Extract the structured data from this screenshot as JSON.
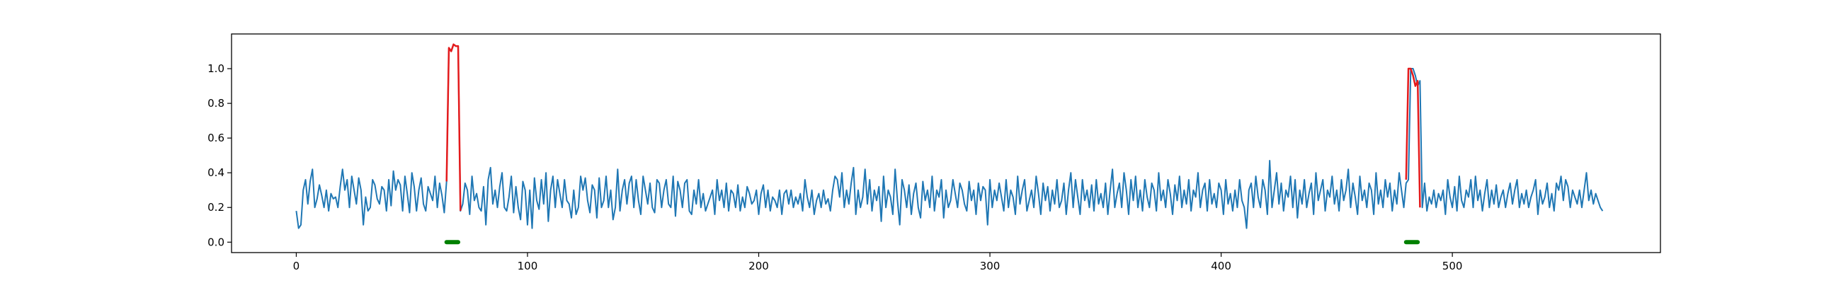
{
  "chart_data": {
    "type": "line",
    "title": "",
    "xlabel": "",
    "ylabel": "",
    "xlim": [
      -28,
      590
    ],
    "ylim": [
      -0.06,
      1.2
    ],
    "grid": false,
    "legend": "none",
    "x_ticks": [
      0,
      100,
      200,
      300,
      400,
      500
    ],
    "x_tick_labels": [
      "0",
      "100",
      "200",
      "300",
      "400",
      "500"
    ],
    "y_ticks": [
      0.0,
      0.2,
      0.4,
      0.6,
      0.8,
      1.0
    ],
    "y_tick_labels": [
      "0.0",
      "0.2",
      "0.4",
      "0.6",
      "0.8",
      "1.0"
    ],
    "colors": {
      "signal": "#1f77b4",
      "anomaly": "#e41a1c",
      "marker": "#008000"
    },
    "series": [
      {
        "key": "signal",
        "x_start": 0,
        "values": [
          0.18,
          0.08,
          0.1,
          0.3,
          0.36,
          0.22,
          0.35,
          0.42,
          0.2,
          0.25,
          0.33,
          0.27,
          0.2,
          0.3,
          0.18,
          0.28,
          0.25,
          0.26,
          0.2,
          0.32,
          0.42,
          0.3,
          0.36,
          0.2,
          0.38,
          0.3,
          0.22,
          0.37,
          0.3,
          0.1,
          0.26,
          0.18,
          0.2,
          0.36,
          0.33,
          0.25,
          0.22,
          0.32,
          0.3,
          0.18,
          0.36,
          0.21,
          0.41,
          0.3,
          0.36,
          0.33,
          0.18,
          0.38,
          0.28,
          0.17,
          0.4,
          0.32,
          0.18,
          0.3,
          0.37,
          0.22,
          0.18,
          0.32,
          0.28,
          0.24,
          0.38,
          0.2,
          0.34,
          0.27,
          0.17,
          0.35,
          1.12,
          1.1,
          1.14,
          1.13,
          1.13,
          0.18,
          0.22,
          0.34,
          0.3,
          0.16,
          0.38,
          0.24,
          0.28,
          0.2,
          0.18,
          0.32,
          0.1,
          0.36,
          0.43,
          0.22,
          0.3,
          0.2,
          0.32,
          0.4,
          0.2,
          0.18,
          0.26,
          0.38,
          0.17,
          0.32,
          0.2,
          0.13,
          0.35,
          0.3,
          0.1,
          0.3,
          0.08,
          0.37,
          0.24,
          0.19,
          0.36,
          0.22,
          0.4,
          0.12,
          0.3,
          0.38,
          0.2,
          0.36,
          0.28,
          0.2,
          0.36,
          0.24,
          0.22,
          0.14,
          0.3,
          0.16,
          0.2,
          0.38,
          0.3,
          0.37,
          0.24,
          0.17,
          0.33,
          0.3,
          0.14,
          0.37,
          0.2,
          0.24,
          0.38,
          0.2,
          0.3,
          0.13,
          0.2,
          0.42,
          0.18,
          0.3,
          0.36,
          0.22,
          0.34,
          0.38,
          0.2,
          0.36,
          0.24,
          0.16,
          0.38,
          0.3,
          0.22,
          0.34,
          0.2,
          0.17,
          0.36,
          0.34,
          0.2,
          0.3,
          0.36,
          0.22,
          0.2,
          0.38,
          0.15,
          0.35,
          0.3,
          0.2,
          0.34,
          0.36,
          0.18,
          0.16,
          0.3,
          0.22,
          0.36,
          0.2,
          0.28,
          0.18,
          0.22,
          0.26,
          0.3,
          0.16,
          0.36,
          0.24,
          0.3,
          0.2,
          0.34,
          0.18,
          0.3,
          0.28,
          0.2,
          0.33,
          0.18,
          0.26,
          0.2,
          0.32,
          0.28,
          0.22,
          0.24,
          0.3,
          0.16,
          0.28,
          0.33,
          0.2,
          0.3,
          0.18,
          0.26,
          0.24,
          0.2,
          0.3,
          0.16,
          0.28,
          0.3,
          0.22,
          0.3,
          0.2,
          0.26,
          0.22,
          0.28,
          0.18,
          0.36,
          0.26,
          0.2,
          0.3,
          0.16,
          0.24,
          0.28,
          0.2,
          0.3,
          0.22,
          0.25,
          0.18,
          0.3,
          0.38,
          0.36,
          0.26,
          0.4,
          0.2,
          0.3,
          0.22,
          0.34,
          0.43,
          0.16,
          0.3,
          0.2,
          0.26,
          0.42,
          0.22,
          0.36,
          0.18,
          0.3,
          0.24,
          0.32,
          0.12,
          0.38,
          0.2,
          0.3,
          0.26,
          0.16,
          0.42,
          0.24,
          0.1,
          0.36,
          0.3,
          0.2,
          0.33,
          0.16,
          0.28,
          0.34,
          0.2,
          0.14,
          0.35,
          0.24,
          0.3,
          0.2,
          0.38,
          0.18,
          0.3,
          0.26,
          0.36,
          0.14,
          0.3,
          0.2,
          0.24,
          0.36,
          0.28,
          0.2,
          0.34,
          0.3,
          0.22,
          0.18,
          0.35,
          0.24,
          0.3,
          0.16,
          0.34,
          0.24,
          0.32,
          0.3,
          0.1,
          0.36,
          0.2,
          0.3,
          0.24,
          0.34,
          0.26,
          0.18,
          0.36,
          0.2,
          0.3,
          0.26,
          0.16,
          0.38,
          0.22,
          0.3,
          0.36,
          0.18,
          0.24,
          0.3,
          0.2,
          0.38,
          0.28,
          0.16,
          0.34,
          0.24,
          0.32,
          0.18,
          0.3,
          0.22,
          0.36,
          0.2,
          0.24,
          0.34,
          0.16,
          0.3,
          0.4,
          0.2,
          0.36,
          0.26,
          0.16,
          0.36,
          0.24,
          0.3,
          0.2,
          0.33,
          0.18,
          0.36,
          0.22,
          0.28,
          0.2,
          0.34,
          0.16,
          0.3,
          0.42,
          0.2,
          0.28,
          0.34,
          0.2,
          0.4,
          0.3,
          0.16,
          0.36,
          0.24,
          0.38,
          0.2,
          0.3,
          0.18,
          0.36,
          0.26,
          0.2,
          0.34,
          0.3,
          0.18,
          0.4,
          0.24,
          0.3,
          0.2,
          0.36,
          0.28,
          0.16,
          0.33,
          0.24,
          0.38,
          0.2,
          0.3,
          0.22,
          0.36,
          0.18,
          0.3,
          0.26,
          0.4,
          0.2,
          0.3,
          0.34,
          0.18,
          0.36,
          0.22,
          0.28,
          0.2,
          0.34,
          0.3,
          0.16,
          0.36,
          0.22,
          0.28,
          0.18,
          0.3,
          0.2,
          0.36,
          0.24,
          0.2,
          0.08,
          0.3,
          0.34,
          0.2,
          0.38,
          0.26,
          0.2,
          0.36,
          0.3,
          0.16,
          0.47,
          0.2,
          0.3,
          0.4,
          0.22,
          0.34,
          0.18,
          0.3,
          0.26,
          0.38,
          0.2,
          0.36,
          0.14,
          0.3,
          0.22,
          0.36,
          0.2,
          0.28,
          0.34,
          0.16,
          0.4,
          0.24,
          0.3,
          0.36,
          0.18,
          0.3,
          0.26,
          0.38,
          0.22,
          0.3,
          0.18,
          0.36,
          0.24,
          0.3,
          0.42,
          0.2,
          0.34,
          0.26,
          0.16,
          0.38,
          0.24,
          0.3,
          0.2,
          0.34,
          0.3,
          0.16,
          0.4,
          0.22,
          0.3,
          0.2,
          0.36,
          0.26,
          0.34,
          0.18,
          0.3,
          0.22,
          0.4,
          0.3,
          0.2,
          0.34,
          0.36,
          1.0,
          1.0,
          0.96,
          0.9,
          0.93,
          0.2,
          0.34,
          0.18,
          0.26,
          0.22,
          0.3,
          0.2,
          0.28,
          0.24,
          0.3,
          0.16,
          0.36,
          0.26,
          0.2,
          0.32,
          0.18,
          0.38,
          0.24,
          0.2,
          0.3,
          0.26,
          0.36,
          0.2,
          0.38,
          0.24,
          0.3,
          0.18,
          0.28,
          0.36,
          0.2,
          0.3,
          0.22,
          0.33,
          0.2,
          0.26,
          0.3,
          0.2,
          0.28,
          0.34,
          0.22,
          0.3,
          0.36,
          0.2,
          0.28,
          0.22,
          0.3,
          0.2,
          0.26,
          0.3,
          0.36,
          0.16,
          0.3,
          0.22,
          0.26,
          0.34,
          0.2,
          0.28,
          0.18,
          0.34,
          0.3,
          0.38,
          0.24,
          0.36,
          0.32,
          0.2,
          0.3,
          0.26,
          0.22,
          0.3,
          0.2,
          0.3,
          0.4,
          0.24,
          0.3,
          0.22,
          0.28,
          0.24,
          0.2,
          0.18
        ]
      },
      {
        "key": "anomaly",
        "x": [
          65,
          66,
          67,
          68,
          69,
          70,
          71
        ],
        "values": [
          0.35,
          1.12,
          1.1,
          1.14,
          1.13,
          1.13,
          0.18
        ]
      },
      {
        "key": "anomaly",
        "x": [
          480,
          481,
          482,
          483,
          484,
          485,
          486
        ],
        "values": [
          0.36,
          1.0,
          1.0,
          0.96,
          0.9,
          0.93,
          0.2
        ]
      },
      {
        "key": "marker",
        "x": [
          65,
          66,
          67,
          68,
          69,
          70
        ],
        "values": [
          0,
          0,
          0,
          0,
          0,
          0
        ]
      },
      {
        "key": "marker",
        "x": [
          480,
          481,
          482,
          483,
          484,
          485
        ],
        "values": [
          0,
          0,
          0,
          0,
          0,
          0
        ]
      }
    ]
  }
}
